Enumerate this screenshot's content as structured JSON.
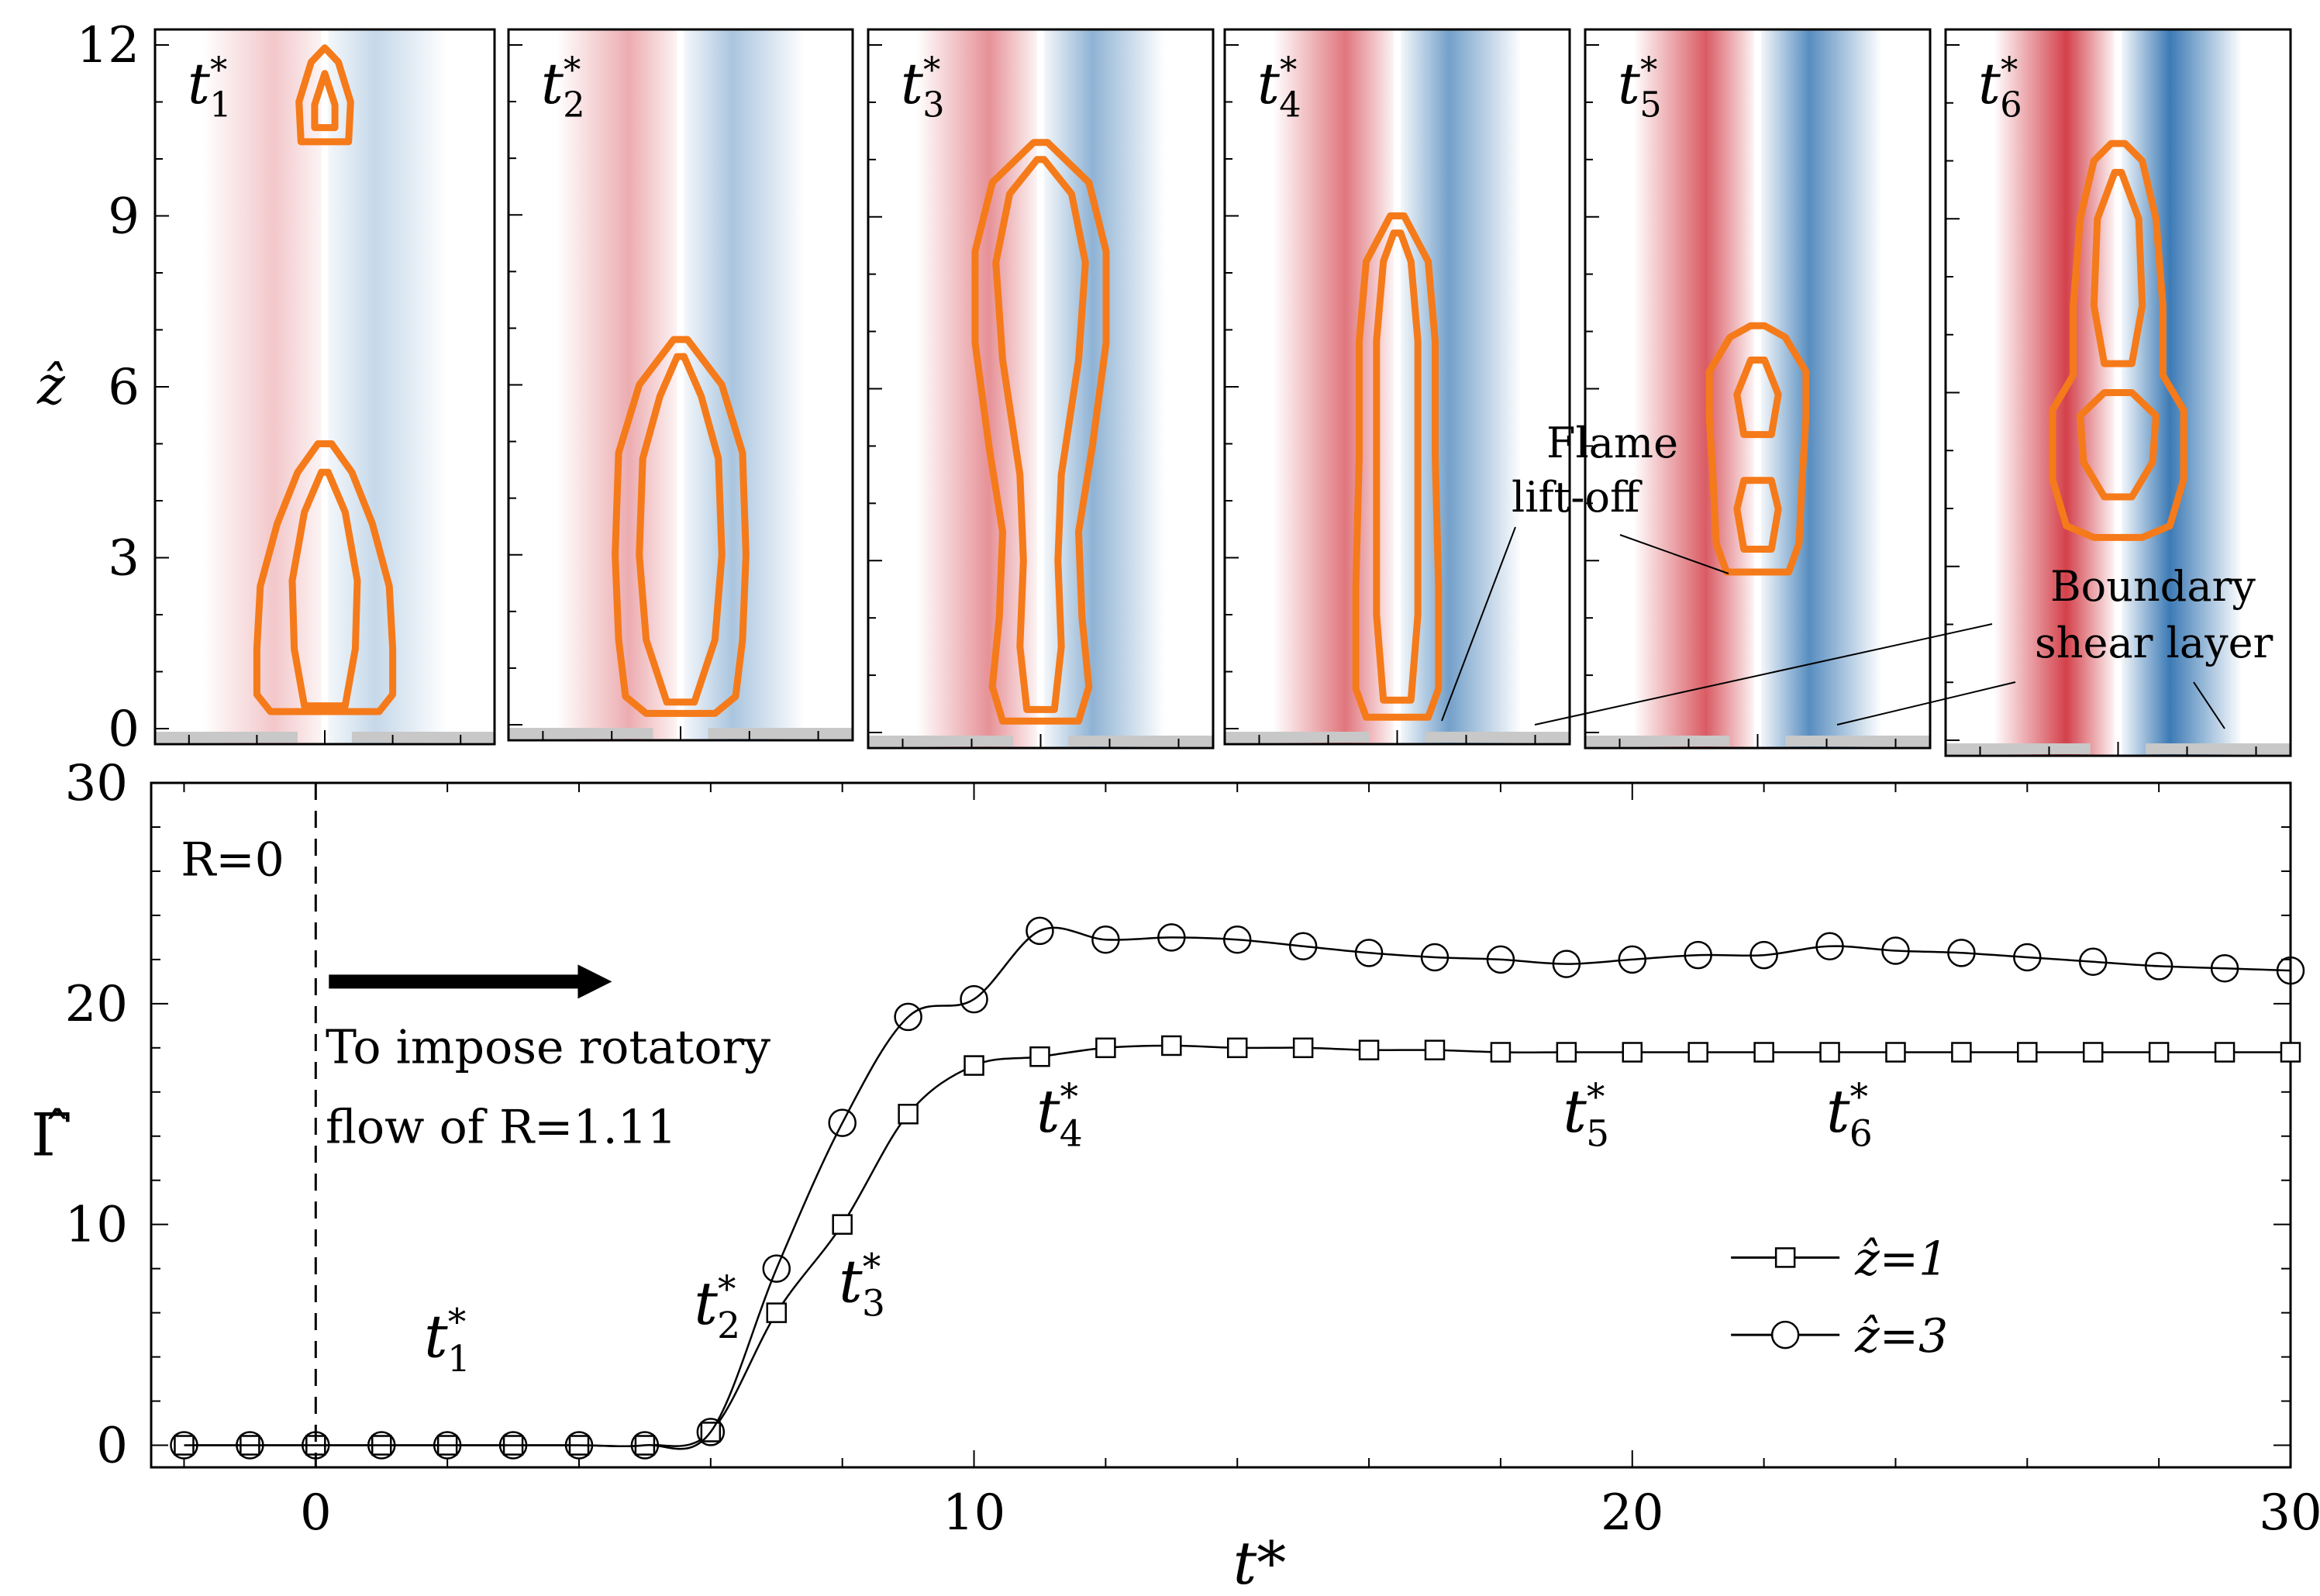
{
  "panels": {
    "ylabel": "ẑ",
    "y_ticks": [
      "0",
      "3",
      "6",
      "9",
      "12"
    ],
    "ylim": [
      0,
      12
    ],
    "x_half_width": 2.5,
    "snapshots": [
      {
        "label": "t",
        "sub": "1",
        "reference_t": 2.0
      },
      {
        "label": "t",
        "sub": "2",
        "reference_t": 6.0
      },
      {
        "label": "t",
        "sub": "3",
        "reference_t": 8.5
      },
      {
        "label": "t",
        "sub": "4",
        "reference_t": 11.5
      },
      {
        "label": "t",
        "sub": "5",
        "reference_t": 19.5
      },
      {
        "label": "t",
        "sub": "6",
        "reference_t": 23.5
      }
    ],
    "annotations": {
      "flame_liftoff": [
        "Flame",
        "lift-off"
      ],
      "boundary_shear": [
        "Boundary",
        "shear layer"
      ]
    },
    "colors": {
      "positive": "#cc1f2b",
      "negative": "#1a63a8",
      "flame_contour": "#f57a1a"
    }
  },
  "chart_data": {
    "type": "line",
    "xlabel": "t*",
    "ylabel": "Γ̂",
    "xlim": [
      -2.5,
      30
    ],
    "ylim": [
      -1,
      30
    ],
    "x_ticks": [
      0,
      10,
      20,
      30
    ],
    "y_ticks": [
      0,
      10,
      20,
      30
    ],
    "series": [
      {
        "name": "ẑ=1",
        "marker": "square",
        "x": [
          -2,
          -1,
          0,
          1,
          2,
          3,
          4,
          5,
          6,
          7,
          8,
          9,
          10,
          11,
          12,
          13,
          14,
          15,
          16,
          17,
          18,
          19,
          20,
          21,
          22,
          23,
          24,
          25,
          26,
          27,
          28,
          29,
          30
        ],
        "y": [
          0,
          0,
          0,
          0,
          0,
          0,
          0,
          0,
          0.6,
          6.0,
          10.0,
          15.0,
          17.2,
          17.6,
          18.0,
          18.1,
          18.0,
          18.0,
          17.9,
          17.9,
          17.8,
          17.8,
          17.8,
          17.8,
          17.8,
          17.8,
          17.8,
          17.8,
          17.8,
          17.8,
          17.8,
          17.8,
          17.8
        ]
      },
      {
        "name": "ẑ=3",
        "marker": "circle",
        "x": [
          -2,
          -1,
          0,
          1,
          2,
          3,
          4,
          5,
          6,
          7,
          8,
          9,
          10,
          11,
          12,
          13,
          14,
          15,
          16,
          17,
          18,
          19,
          20,
          21,
          22,
          23,
          24,
          25,
          26,
          27,
          28,
          29,
          30
        ],
        "y": [
          0,
          0,
          0,
          0,
          0,
          0,
          0,
          0,
          0.6,
          8.0,
          14.6,
          19.4,
          20.2,
          23.3,
          22.9,
          23.0,
          22.9,
          22.6,
          22.3,
          22.1,
          22.0,
          21.8,
          22.0,
          22.2,
          22.2,
          22.6,
          22.4,
          22.3,
          22.1,
          21.9,
          21.7,
          21.6,
          21.5
        ]
      }
    ],
    "annotations": {
      "r0_text": "R=0",
      "impose_text_line1": "To impose rotatory",
      "impose_text_line2": "flow of R=1.11",
      "dashed_line_x": 0,
      "arrow_from_x": 0.2,
      "arrow_to_x": 4.5,
      "arrow_y": 21
    },
    "time_labels": [
      {
        "sub": "1",
        "t": 2.0,
        "value": 4.0
      },
      {
        "sub": "2",
        "t": 6.1,
        "value": 5.5
      },
      {
        "sub": "3",
        "t": 8.3,
        "value": 6.5
      },
      {
        "sub": "4",
        "t": 11.3,
        "value": 14.2
      },
      {
        "sub": "5",
        "t": 19.3,
        "value": 14.2
      },
      {
        "sub": "6",
        "t": 23.3,
        "value": 14.2
      }
    ],
    "legend": {
      "position": "lower-right"
    }
  }
}
